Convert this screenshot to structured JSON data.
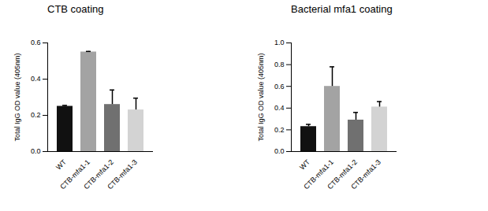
{
  "chart_data": [
    {
      "type": "bar",
      "title": "CTB coating",
      "y_label": "Total IgG OD value (405nm)",
      "categories": [
        "WT",
        "CTB-mfa1-1",
        "CTB-mfa1-2",
        "CTB-mfa1-3"
      ],
      "values": [
        0.25,
        0.55,
        0.26,
        0.23
      ],
      "errors": [
        0.005,
        0.003,
        0.08,
        0.065
      ],
      "colors": [
        "#111111",
        "#a3a3a3",
        "#707070",
        "#d3d3d3"
      ],
      "ylim": [
        0,
        0.6
      ],
      "yticks": [
        {
          "value": 0,
          "label": "0.0"
        },
        0.2,
        0.4,
        0.6
      ]
    },
    {
      "type": "bar",
      "title": "Bacterial mfa1 coating",
      "y_label": "Total IgG OD value (405nm)",
      "categories": [
        "WT",
        "CTB-mfa1-1",
        "CTB-mfa1-2",
        "CTB-mfa1-3"
      ],
      "values": [
        0.23,
        0.6,
        0.29,
        0.41
      ],
      "errors": [
        0.02,
        0.18,
        0.07,
        0.05
      ],
      "colors": [
        "#111111",
        "#a3a3a3",
        "#707070",
        "#d3d3d3"
      ],
      "ylim": [
        0,
        1.0
      ],
      "yticks": [
        {
          "value": 0,
          "label": "0.0"
        },
        0.2,
        0.4,
        0.6,
        0.8,
        {
          "value": 1,
          "label": "1.0"
        }
      ]
    }
  ]
}
